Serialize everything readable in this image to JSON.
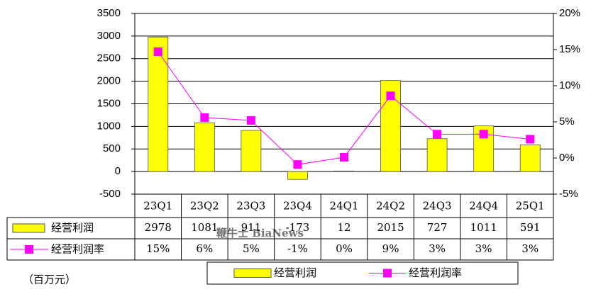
{
  "chart_data": {
    "type": "bar-line",
    "categories": [
      "23Q1",
      "23Q2",
      "23Q3",
      "23Q4",
      "24Q1",
      "24Q2",
      "24Q3",
      "24Q4",
      "25Q1"
    ],
    "series": [
      {
        "name": "经营利润",
        "type": "bar",
        "color": "#ffff00",
        "values": [
          2978,
          1081,
          911,
          -173,
          12,
          2015,
          727,
          1011,
          591
        ]
      },
      {
        "name": "经营利润率",
        "type": "line",
        "axis": "y2",
        "color": "#ff00ff",
        "values": [
          14.7,
          5.6,
          5.2,
          -0.9,
          0.1,
          8.6,
          3.3,
          3.3,
          2.6
        ],
        "value_labels": [
          "15%",
          "6%",
          "5%",
          "-1%",
          "0%",
          "9%",
          "3%",
          "3%",
          "3%"
        ]
      }
    ],
    "ylim": [
      -500,
      3500
    ],
    "yticks": [
      -500,
      0,
      500,
      1000,
      1500,
      2000,
      2500,
      3000,
      3500
    ],
    "y2lim": [
      -5,
      20
    ],
    "y2ticks": [
      {
        "value": -5,
        "label": "-5%"
      },
      {
        "value": 0,
        "label": "0%"
      },
      {
        "value": 5,
        "label": "5%"
      },
      {
        "value": 10,
        "label": "10%"
      },
      {
        "value": 15,
        "label": "15%"
      },
      {
        "value": 20,
        "label": "20%"
      }
    ],
    "grid": true,
    "unit_note": "（百万元）",
    "watermark": "鞭牛士 BiaNews"
  }
}
